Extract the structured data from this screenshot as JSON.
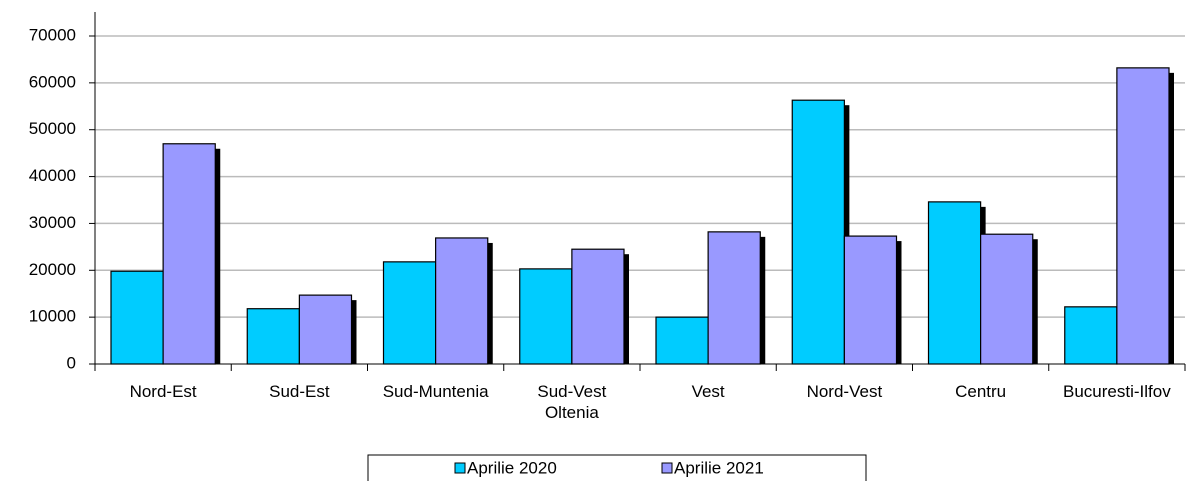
{
  "chart_data": {
    "type": "bar",
    "categories": [
      "Nord-Est",
      "Sud-Est",
      "Sud-Muntenia",
      "Sud-Vest Oltenia",
      "Vest",
      "Nord-Vest",
      "Centru",
      "Bucuresti-Ilfov"
    ],
    "series": [
      {
        "name": "Aprilie 2020",
        "color": "#00ccff",
        "values": [
          19800,
          11800,
          21800,
          20300,
          10000,
          56300,
          34600,
          12200
        ]
      },
      {
        "name": "Aprilie 2021",
        "color": "#9999ff",
        "values": [
          47000,
          14700,
          26900,
          24500,
          28200,
          27300,
          27700,
          63200
        ]
      }
    ],
    "ylim": [
      0,
      70000
    ],
    "yticks": [
      0,
      10000,
      20000,
      30000,
      40000,
      50000,
      60000,
      70000
    ],
    "grid": true,
    "legend": "bottom"
  }
}
